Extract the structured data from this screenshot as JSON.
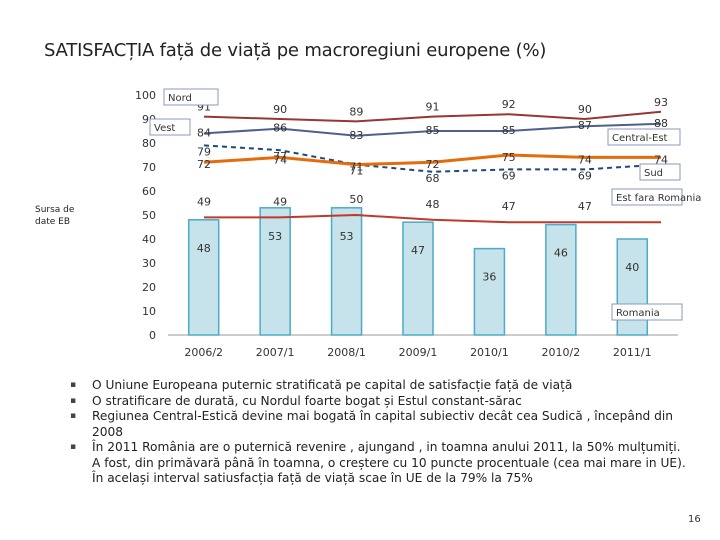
{
  "title": "SATISFACȚIA față de viață pe macroregiuni  europene (%)",
  "source_label": "Sursa de date EB",
  "page_number": "16",
  "bullets": [
    "O Uniune Europeana puternic stratificată pe capital de satisfacție față de viață",
    "O stratificare de  durată, cu Nordul foarte bogat și Estul constant-sărac",
    "Regiunea Central-Estică devine mai bogată în capital subiectiv decât cea Sudică , începând din 2008",
    "În 2011 România are o puternică revenire , ajungand , in toamna anului 2011, la 50% mulțumiți. A fost, din primăvară până în toamna, o creștere cu 10 puncte procentuale (cea mai mare in UE). În același interval satiusfacția față de viață scae în UE de la 79% la 75%"
  ],
  "chart_data": {
    "type": "bar",
    "categories": [
      "2006/2",
      "2007/1",
      "2008/1",
      "2009/1",
      "2010/1",
      "2010/2",
      "2011/1"
    ],
    "ylim": [
      0,
      100
    ],
    "yticks": [
      "0",
      "10",
      "20",
      "30",
      "40",
      "50",
      "60",
      "70",
      "80",
      "90",
      "100"
    ],
    "bars": {
      "name": "Romania",
      "values": [
        48,
        53,
        53,
        47,
        36,
        46,
        40
      ],
      "labels": [
        "48",
        "53",
        "53",
        "47",
        "36",
        "46",
        "40"
      ],
      "color": "#c6e2ea",
      "edge": "#4bacc6"
    },
    "series": [
      {
        "name": "Nord",
        "values": [
          91,
          90,
          89,
          91,
          92,
          90,
          93
        ],
        "labels": [
          "91",
          "90",
          "89",
          "91",
          "92",
          "90",
          "93"
        ],
        "color": "#953735",
        "dash": false
      },
      {
        "name": "Vest",
        "values": [
          84,
          86,
          83,
          85,
          85,
          87,
          88
        ],
        "labels": [
          "84",
          "86",
          "83",
          "85",
          "85",
          "87",
          "88"
        ],
        "color": "#4f5f8f",
        "dash": false
      },
      {
        "name": "Sud",
        "values": [
          79,
          77,
          71,
          68,
          69,
          69,
          71
        ],
        "labels": [
          "79",
          "77",
          "71",
          "68",
          "69",
          "69",
          "71"
        ],
        "color": "#1f497d",
        "dash": true
      },
      {
        "name": "Central-Est",
        "values": [
          72,
          74,
          71,
          72,
          75,
          74,
          74
        ],
        "labels": [
          "72",
          "74",
          "71",
          "72",
          "75",
          "74",
          "74"
        ],
        "color": "#e46c0a",
        "dash": false
      },
      {
        "name": "Est fara Romania",
        "values": [
          49,
          49,
          50,
          48,
          47,
          47,
          47
        ],
        "labels": [
          "49",
          "49",
          "50",
          "48",
          "47",
          "47",
          ""
        ],
        "color": "#c0392b",
        "dash": false
      }
    ],
    "legend_boxes": [
      "Nord",
      "Vest",
      "Central-Est",
      "Sud",
      "Est fara Romania",
      "Romania"
    ],
    "grid": false
  }
}
